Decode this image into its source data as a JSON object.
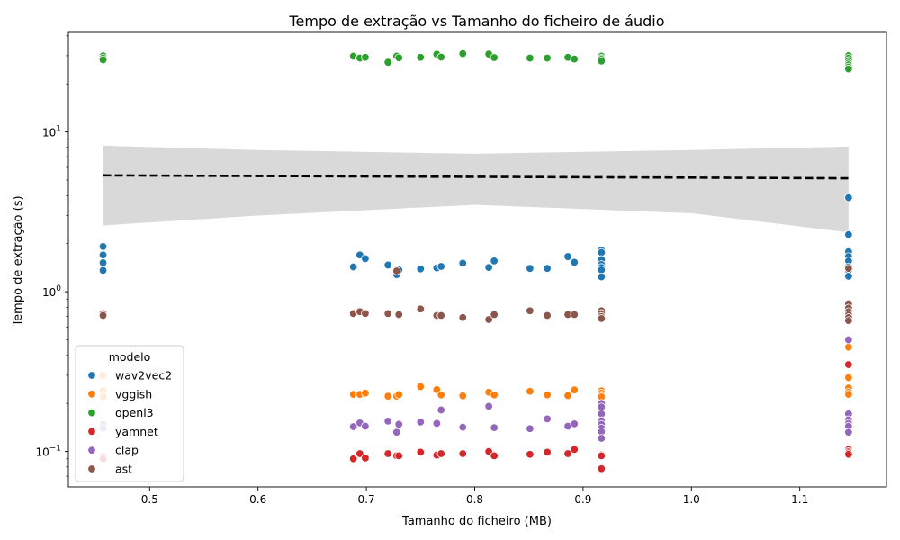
{
  "chart_data": {
    "type": "scatter",
    "title": "Tempo de extração vs Tamanho do ficheiro de áudio",
    "xlabel": "Tamanho do ficheiro (MB)",
    "ylabel": "Tempo de extração (s)",
    "xlim": [
      0.425,
      1.18
    ],
    "ylim": [
      0.06,
      42
    ],
    "yscale": "log",
    "x_ticks": [
      {
        "value": 0.5,
        "label": "0.5"
      },
      {
        "value": 0.6,
        "label": "0.6"
      },
      {
        "value": 0.7,
        "label": "0.7"
      },
      {
        "value": 0.8,
        "label": "0.8"
      },
      {
        "value": 0.9,
        "label": "0.9"
      },
      {
        "value": 1.0,
        "label": "1.0"
      },
      {
        "value": 1.1,
        "label": "1.1"
      }
    ],
    "y_ticks": [
      {
        "value": 0.1,
        "base": "10",
        "exp": "−1"
      },
      {
        "value": 1,
        "base": "10",
        "exp": "0"
      },
      {
        "value": 10,
        "base": "10",
        "exp": "1"
      }
    ],
    "legend": {
      "title": "modelo",
      "position": "lower-left"
    },
    "regression": {
      "style": "dashed",
      "color": "#000000",
      "band_color": "#d9d9d9",
      "x": [
        0.457,
        0.6,
        0.8,
        1.0,
        1.145
      ],
      "y": [
        5.35,
        5.3,
        5.24,
        5.18,
        5.13
      ],
      "lower": [
        2.6,
        3.0,
        3.5,
        3.1,
        2.35
      ],
      "upper": [
        8.2,
        7.7,
        7.3,
        7.7,
        8.1
      ]
    },
    "series": [
      {
        "name": "wav2vec2",
        "color": "#1f77b4",
        "points": [
          [
            0.457,
            1.92
          ],
          [
            0.457,
            1.7
          ],
          [
            0.457,
            1.52
          ],
          [
            0.457,
            1.36
          ],
          [
            0.688,
            1.43
          ],
          [
            0.694,
            1.7
          ],
          [
            0.699,
            1.61
          ],
          [
            0.72,
            1.47
          ],
          [
            0.728,
            1.28
          ],
          [
            0.73,
            1.37
          ],
          [
            0.75,
            1.39
          ],
          [
            0.765,
            1.41
          ],
          [
            0.769,
            1.44
          ],
          [
            0.789,
            1.51
          ],
          [
            0.813,
            1.42
          ],
          [
            0.818,
            1.56
          ],
          [
            0.851,
            1.4
          ],
          [
            0.867,
            1.4
          ],
          [
            0.886,
            1.66
          ],
          [
            0.892,
            1.53
          ],
          [
            0.917,
            1.82
          ],
          [
            0.917,
            1.76
          ],
          [
            0.917,
            1.59
          ],
          [
            0.917,
            1.48
          ],
          [
            0.917,
            1.42
          ],
          [
            0.917,
            1.37
          ],
          [
            0.917,
            1.24
          ],
          [
            1.145,
            3.88
          ],
          [
            1.145,
            2.28
          ],
          [
            1.145,
            1.78
          ],
          [
            1.145,
            1.66
          ],
          [
            1.145,
            1.56
          ],
          [
            1.145,
            1.43
          ],
          [
            1.145,
            1.36
          ],
          [
            1.145,
            1.25
          ]
        ]
      },
      {
        "name": "vggish",
        "color": "#ff7f0e",
        "points": [
          [
            0.457,
            0.3
          ],
          [
            0.457,
            0.24
          ],
          [
            0.457,
            0.22
          ],
          [
            0.457,
            0.09
          ],
          [
            0.688,
            0.228
          ],
          [
            0.694,
            0.228
          ],
          [
            0.699,
            0.232
          ],
          [
            0.72,
            0.222
          ],
          [
            0.728,
            0.222
          ],
          [
            0.73,
            0.227
          ],
          [
            0.75,
            0.255
          ],
          [
            0.765,
            0.244
          ],
          [
            0.769,
            0.226
          ],
          [
            0.789,
            0.223
          ],
          [
            0.813,
            0.235
          ],
          [
            0.818,
            0.226
          ],
          [
            0.851,
            0.238
          ],
          [
            0.867,
            0.226
          ],
          [
            0.886,
            0.224
          ],
          [
            0.892,
            0.243
          ],
          [
            0.917,
            0.24
          ],
          [
            0.917,
            0.232
          ],
          [
            0.917,
            0.225
          ],
          [
            0.917,
            0.22
          ],
          [
            1.145,
            0.45
          ],
          [
            1.145,
            0.29
          ],
          [
            1.145,
            0.25
          ],
          [
            1.145,
            0.235
          ],
          [
            1.145,
            0.228
          ]
        ]
      },
      {
        "name": "openl3",
        "color": "#2ca02c",
        "points": [
          [
            0.457,
            29.9
          ],
          [
            0.457,
            29.0
          ],
          [
            0.457,
            28.3
          ],
          [
            0.688,
            29.8
          ],
          [
            0.694,
            29.0
          ],
          [
            0.699,
            29.3
          ],
          [
            0.72,
            27.3
          ],
          [
            0.728,
            29.8
          ],
          [
            0.73,
            29.1
          ],
          [
            0.75,
            29.3
          ],
          [
            0.765,
            30.6
          ],
          [
            0.769,
            29.4
          ],
          [
            0.789,
            30.9
          ],
          [
            0.813,
            30.7
          ],
          [
            0.818,
            29.2
          ],
          [
            0.851,
            29.0
          ],
          [
            0.867,
            29.0
          ],
          [
            0.886,
            29.3
          ],
          [
            0.892,
            28.6
          ],
          [
            0.917,
            29.8
          ],
          [
            0.917,
            29.0
          ],
          [
            0.917,
            28.5
          ],
          [
            0.917,
            27.8
          ],
          [
            1.145,
            30.0
          ],
          [
            1.145,
            29.0
          ],
          [
            1.145,
            28.0
          ],
          [
            1.145,
            27.0
          ],
          [
            1.145,
            26.3
          ],
          [
            1.145,
            25.5
          ],
          [
            1.145,
            24.8
          ]
        ]
      },
      {
        "name": "yamnet",
        "color": "#d62728",
        "points": [
          [
            0.457,
            0.093
          ],
          [
            0.457,
            0.09
          ],
          [
            0.688,
            0.09
          ],
          [
            0.694,
            0.097
          ],
          [
            0.699,
            0.091
          ],
          [
            0.72,
            0.097
          ],
          [
            0.728,
            0.094
          ],
          [
            0.73,
            0.094
          ],
          [
            0.75,
            0.099
          ],
          [
            0.765,
            0.095
          ],
          [
            0.769,
            0.097
          ],
          [
            0.789,
            0.097
          ],
          [
            0.813,
            0.1
          ],
          [
            0.818,
            0.094
          ],
          [
            0.851,
            0.096
          ],
          [
            0.867,
            0.099
          ],
          [
            0.886,
            0.097
          ],
          [
            0.892,
            0.103
          ],
          [
            0.917,
            0.095
          ],
          [
            0.917,
            0.094
          ],
          [
            0.917,
            0.078
          ],
          [
            1.145,
            0.35
          ],
          [
            1.145,
            0.103
          ],
          [
            1.145,
            0.1
          ],
          [
            1.145,
            0.098
          ],
          [
            1.145,
            0.096
          ]
        ]
      },
      {
        "name": "clap",
        "color": "#9467bd",
        "points": [
          [
            0.457,
            0.148
          ],
          [
            0.457,
            0.14
          ],
          [
            0.688,
            0.143
          ],
          [
            0.694,
            0.151
          ],
          [
            0.699,
            0.144
          ],
          [
            0.72,
            0.155
          ],
          [
            0.728,
            0.132
          ],
          [
            0.73,
            0.148
          ],
          [
            0.75,
            0.153
          ],
          [
            0.765,
            0.15
          ],
          [
            0.769,
            0.182
          ],
          [
            0.789,
            0.142
          ],
          [
            0.813,
            0.192
          ],
          [
            0.818,
            0.141
          ],
          [
            0.851,
            0.139
          ],
          [
            0.867,
            0.16
          ],
          [
            0.886,
            0.144
          ],
          [
            0.892,
            0.149
          ],
          [
            0.917,
            0.2
          ],
          [
            0.917,
            0.19
          ],
          [
            0.917,
            0.172
          ],
          [
            0.917,
            0.156
          ],
          [
            0.917,
            0.148
          ],
          [
            0.917,
            0.14
          ],
          [
            0.917,
            0.133
          ],
          [
            0.917,
            0.121
          ],
          [
            1.145,
            0.5
          ],
          [
            1.145,
            0.172
          ],
          [
            1.145,
            0.158
          ],
          [
            1.145,
            0.15
          ],
          [
            1.145,
            0.144
          ],
          [
            1.145,
            0.132
          ]
        ]
      },
      {
        "name": "ast",
        "color": "#8c564b",
        "points": [
          [
            0.457,
            0.73
          ],
          [
            0.457,
            0.71
          ],
          [
            0.688,
            0.73
          ],
          [
            0.694,
            0.75
          ],
          [
            0.699,
            0.73
          ],
          [
            0.72,
            0.73
          ],
          [
            0.728,
            1.35
          ],
          [
            0.73,
            0.72
          ],
          [
            0.75,
            0.78
          ],
          [
            0.765,
            0.71
          ],
          [
            0.769,
            0.71
          ],
          [
            0.789,
            0.69
          ],
          [
            0.813,
            0.67
          ],
          [
            0.818,
            0.72
          ],
          [
            0.851,
            0.76
          ],
          [
            0.867,
            0.71
          ],
          [
            0.886,
            0.72
          ],
          [
            0.892,
            0.72
          ],
          [
            0.917,
            0.76
          ],
          [
            0.917,
            0.73
          ],
          [
            0.917,
            0.7
          ],
          [
            0.917,
            0.68
          ],
          [
            1.145,
            1.4
          ],
          [
            1.145,
            0.84
          ],
          [
            1.145,
            0.79
          ],
          [
            1.145,
            0.75
          ],
          [
            1.145,
            0.72
          ],
          [
            1.145,
            0.69
          ],
          [
            1.145,
            0.66
          ]
        ]
      }
    ]
  }
}
